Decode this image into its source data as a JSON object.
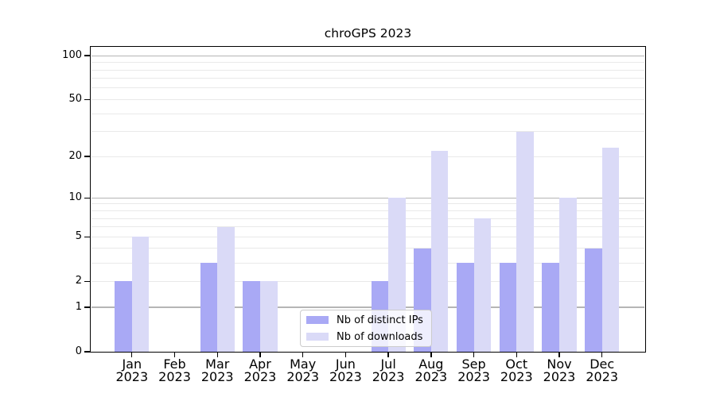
{
  "chart_data": {
    "type": "bar",
    "title": "chroGPS 2023",
    "categories": [
      "Jan",
      "Feb",
      "Mar",
      "Apr",
      "May",
      "Jun",
      "Jul",
      "Aug",
      "Sep",
      "Oct",
      "Nov",
      "Dec"
    ],
    "year_label": "2023",
    "series": [
      {
        "name": "Nb of distinct IPs",
        "color": "#a9a9f5",
        "values": [
          2,
          0,
          3,
          2,
          0,
          0,
          2,
          4,
          3,
          3,
          3,
          4
        ]
      },
      {
        "name": "Nb of downloads",
        "color": "#dadaf7",
        "values": [
          5,
          0,
          6,
          2,
          0,
          0,
          10,
          22,
          7,
          30,
          10,
          23
        ]
      }
    ],
    "y_axis": {
      "scale": "log10(1+x)",
      "tick_values": [
        0,
        1,
        2,
        5,
        10,
        20,
        50,
        100
      ],
      "major_gridlines": [
        1,
        10,
        100
      ],
      "minor_gridlines": [
        2,
        3,
        4,
        5,
        6,
        7,
        8,
        9,
        20,
        30,
        40,
        50,
        60,
        70,
        80,
        90
      ],
      "range": [
        0,
        115
      ]
    },
    "legend": {
      "position": "lower-center-inside"
    },
    "grid": true
  },
  "colors": {
    "major_grid": "#b5b5b5",
    "minor_grid": "#e9e9e9",
    "spine": "#000000",
    "legend_border": "#cccccc"
  }
}
